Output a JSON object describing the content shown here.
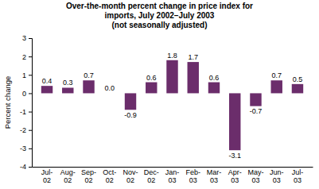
{
  "chart_data": {
    "type": "bar",
    "title": "Over-the-month percent change in price index for\nimports, July 2002–July 2003\n(not seasonally adjusted)",
    "y_label": "Percent change",
    "categories": [
      "Jul-\n02",
      "Aug-\n02",
      "Sep-\n02",
      "Oct-\n02",
      "Nov-\n02",
      "Dec-\n02",
      "Jan-\n03",
      "Feb-\n03",
      "Mar-\n03",
      "Apr-\n03",
      "May-\n03",
      "Jun-\n03",
      "Jul-\n03"
    ],
    "values": [
      0.4,
      0.3,
      0.7,
      0.0,
      -0.9,
      0.6,
      1.8,
      1.7,
      0.6,
      -3.1,
      -0.7,
      0.7,
      0.5
    ],
    "value_labels": [
      "0.4",
      "0.3",
      "0.7",
      "0.0",
      "-0.9",
      "0.6",
      "1.8",
      "1.7",
      "0.6",
      "-3.1",
      "-0.7",
      "0.7",
      "0.5"
    ],
    "data_labels": true,
    "color": "#6B2D6B",
    "ylim": [
      -4,
      3
    ],
    "yticks": [
      -4,
      -3,
      -2,
      -1,
      0,
      1,
      2,
      3
    ],
    "grid": false
  }
}
